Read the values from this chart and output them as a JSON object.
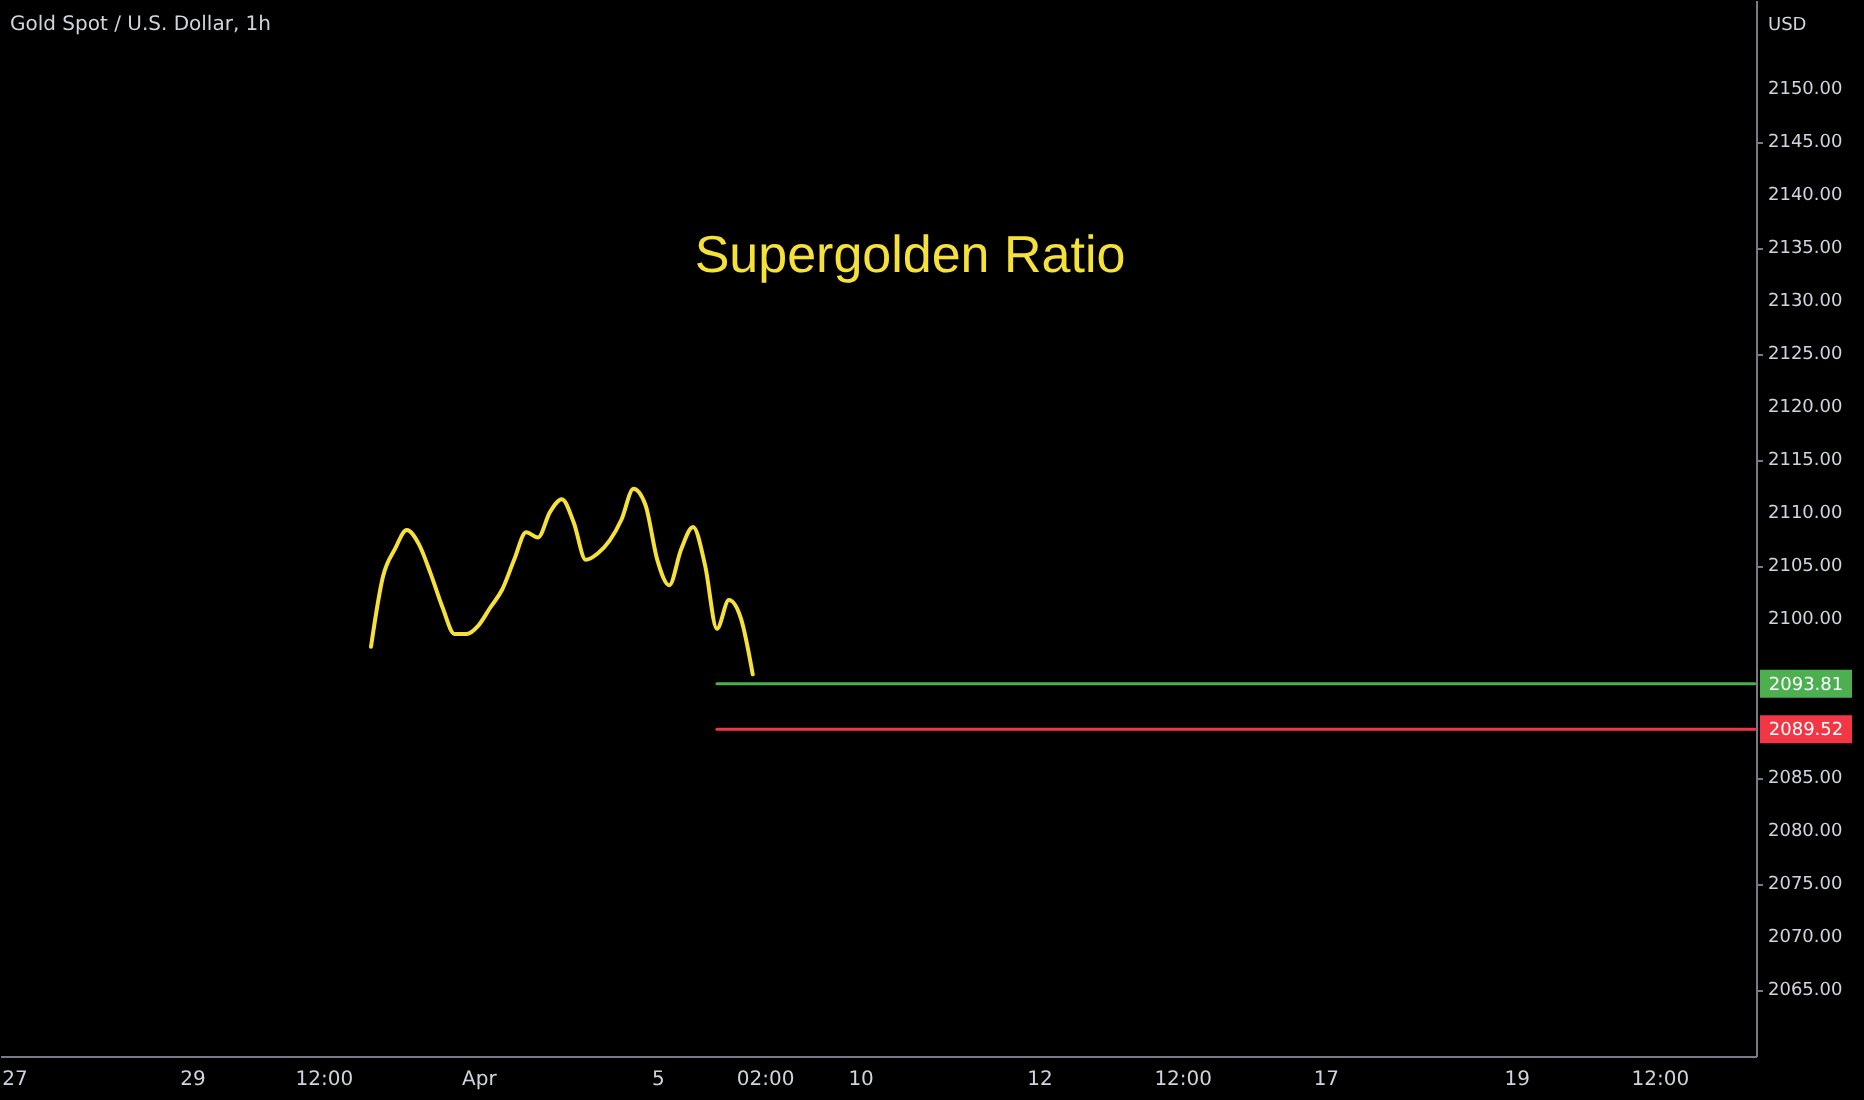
{
  "chart_data": {
    "type": "line",
    "title": "Gold Spot / U.S. Dollar, 1h",
    "ylabel": "USD",
    "annotations": [
      "Supergolden Ratio",
      "2093.81",
      "2089.52"
    ],
    "categories": [
      "27",
      null,
      null,
      null,
      null,
      null,
      null,
      null,
      null,
      null,
      null,
      null,
      null,
      null,
      null,
      null,
      "29",
      null,
      null,
      null,
      null,
      null,
      null,
      null,
      null,
      null,
      null,
      "12:00",
      null,
      null,
      null,
      null,
      null,
      null,
      null,
      null,
      null,
      null,
      null,
      null,
      "Apr",
      null,
      null,
      null,
      null,
      null,
      null,
      null,
      null,
      null,
      null,
      null,
      null,
      null,
      null,
      "5",
      null,
      null,
      null,
      null,
      null,
      null,
      null,
      null,
      "02:00",
      null,
      null,
      null,
      null,
      null,
      null,
      null,
      "10",
      null,
      null,
      null,
      null,
      null,
      null,
      null,
      null,
      null,
      null,
      null,
      null,
      null,
      null,
      "12",
      null,
      null,
      null,
      null,
      null,
      null,
      null,
      null,
      null,
      null,
      null,
      "12:00",
      null,
      null,
      null,
      null,
      null,
      null,
      null,
      null,
      null,
      null,
      null,
      "17",
      null,
      null,
      null,
      null,
      null,
      null,
      null,
      null,
      null,
      null,
      null,
      null,
      null,
      null,
      null,
      "19",
      null,
      null,
      null,
      null,
      null,
      null,
      null,
      null,
      null,
      null,
      null,
      "12:00",
      null,
      null,
      null,
      null,
      null,
      null,
      null,
      null
    ],
    "ylim": [
      2058.7,
      2158.3
    ],
    "yticks": [
      {
        "value": 2065,
        "label": "2065.00"
      },
      {
        "value": 2070,
        "label": "2070.00"
      },
      {
        "value": 2075,
        "label": "2075.00"
      },
      {
        "value": 2080,
        "label": "2080.00"
      },
      {
        "value": 2085,
        "label": "2085.00"
      },
      {
        "value": 2100,
        "label": "2100.00"
      },
      {
        "value": 2105,
        "label": "2105.00"
      },
      {
        "value": 2110,
        "label": "2110.00"
      },
      {
        "value": 2115,
        "label": "2115.00"
      },
      {
        "value": 2120,
        "label": "2120.00"
      },
      {
        "value": 2125,
        "label": "2125.00"
      },
      {
        "value": 2130,
        "label": "2130.00"
      },
      {
        "value": 2135,
        "label": "2135.00"
      },
      {
        "value": 2140,
        "label": "2140.00"
      },
      {
        "value": 2145,
        "label": "2145.00"
      },
      {
        "value": 2150,
        "label": "2150.00"
      }
    ],
    "grid": false,
    "marker": "none",
    "line_style": "solid",
    "series": [
      {
        "color": "#f5e13a",
        "values": [
          null,
          null,
          null,
          null,
          null,
          null,
          null,
          null,
          null,
          null,
          null,
          null,
          null,
          null,
          null,
          null,
          null,
          null,
          null,
          null,
          null,
          null,
          null,
          null,
          null,
          null,
          null,
          null,
          null,
          null,
          null,
          2097.3,
          2103.9,
          2106.5,
          2108.3,
          2107.0,
          2104.2,
          2101.0,
          2098.5,
          2098.5,
          2099.3,
          2101.0,
          2102.7,
          2105.5,
          2108.1,
          2107.6,
          2110.0,
          2111.2,
          2109.0,
          2105.5,
          2106.1,
          2107.3,
          2109.3,
          2112.2,
          2110.7,
          2105.5,
          2103.1,
          2106.5,
          2108.6,
          2105.0,
          2099.0,
          2101.7,
          2100.0,
          2094.7,
          null,
          null,
          null,
          null,
          null,
          null,
          null,
          null,
          null,
          null,
          null,
          null,
          null,
          null,
          null,
          null,
          null,
          null,
          null,
          null,
          null,
          null,
          null,
          null,
          null,
          null,
          null,
          null,
          null,
          null,
          null,
          null,
          null,
          null,
          null,
          null,
          null,
          null,
          null,
          null,
          null,
          null,
          null,
          null,
          null,
          null,
          null,
          null,
          null,
          null,
          null,
          null,
          null,
          null,
          null,
          null,
          null,
          null,
          null,
          null,
          null,
          null,
          null,
          null,
          null,
          null,
          null,
          null,
          null,
          null,
          null,
          null,
          null,
          null,
          null,
          null,
          null,
          null,
          null,
          null,
          null,
          null,
          null,
          null
        ]
      },
      {
        "color": "#4caf50",
        "values": [
          null,
          null,
          null,
          null,
          null,
          null,
          null,
          null,
          null,
          null,
          null,
          null,
          null,
          null,
          null,
          null,
          null,
          null,
          null,
          null,
          null,
          null,
          null,
          null,
          null,
          null,
          null,
          null,
          null,
          null,
          null,
          null,
          null,
          null,
          null,
          null,
          null,
          null,
          null,
          null,
          null,
          null,
          null,
          null,
          null,
          null,
          null,
          null,
          null,
          null,
          null,
          null,
          null,
          null,
          null,
          null,
          null,
          null,
          null,
          null,
          2093.81,
          2093.81,
          2093.81,
          2093.81,
          2093.81,
          2093.81,
          2093.81,
          2093.81,
          2093.81,
          2093.81,
          2093.81,
          2093.81,
          2093.81,
          2093.81,
          2093.81,
          2093.81,
          2093.81,
          2093.81,
          2093.81,
          2093.81,
          2093.81,
          2093.81,
          2093.81,
          2093.81,
          2093.81,
          2093.81,
          2093.81,
          2093.81,
          2093.81,
          2093.81,
          2093.81,
          2093.81,
          2093.81,
          2093.81,
          2093.81,
          2093.81,
          2093.81,
          2093.81,
          2093.81,
          2093.81,
          2093.81,
          2093.81,
          2093.81,
          2093.81,
          2093.81,
          2093.81,
          2093.81,
          2093.81,
          2093.81,
          2093.81,
          2093.81,
          2093.81,
          2093.81,
          2093.81,
          2093.81,
          2093.81,
          2093.81,
          2093.81,
          2093.81,
          2093.81,
          2093.81,
          2093.81,
          2093.81,
          2093.81,
          2093.81,
          2093.81,
          2093.81,
          2093.81,
          2093.81,
          2093.81,
          2093.81,
          2093.81,
          2093.81,
          2093.81,
          2093.81,
          2093.81,
          2093.81,
          2093.81,
          2093.81,
          2093.81,
          2093.81,
          2093.81,
          2093.81,
          2093.81,
          2093.81,
          2093.81,
          2093.81,
          2093.81
        ]
      },
      {
        "color": "#f23645",
        "values": [
          null,
          null,
          null,
          null,
          null,
          null,
          null,
          null,
          null,
          null,
          null,
          null,
          null,
          null,
          null,
          null,
          null,
          null,
          null,
          null,
          null,
          null,
          null,
          null,
          null,
          null,
          null,
          null,
          null,
          null,
          null,
          null,
          null,
          null,
          null,
          null,
          null,
          null,
          null,
          null,
          null,
          null,
          null,
          null,
          null,
          null,
          null,
          null,
          null,
          null,
          null,
          null,
          null,
          null,
          null,
          null,
          null,
          null,
          null,
          null,
          2089.52,
          2089.52,
          2089.52,
          2089.52,
          2089.52,
          2089.52,
          2089.52,
          2089.52,
          2089.52,
          2089.52,
          2089.52,
          2089.52,
          2089.52,
          2089.52,
          2089.52,
          2089.52,
          2089.52,
          2089.52,
          2089.52,
          2089.52,
          2089.52,
          2089.52,
          2089.52,
          2089.52,
          2089.52,
          2089.52,
          2089.52,
          2089.52,
          2089.52,
          2089.52,
          2089.52,
          2089.52,
          2089.52,
          2089.52,
          2089.52,
          2089.52,
          2089.52,
          2089.52,
          2089.52,
          2089.52,
          2089.52,
          2089.52,
          2089.52,
          2089.52,
          2089.52,
          2089.52,
          2089.52,
          2089.52,
          2089.52,
          2089.52,
          2089.52,
          2089.52,
          2089.52,
          2089.52,
          2089.52,
          2089.52,
          2089.52,
          2089.52,
          2089.52,
          2089.52,
          2089.52,
          2089.52,
          2089.52,
          2089.52,
          2089.52,
          2089.52,
          2089.52,
          2089.52,
          2089.52,
          2089.52,
          2089.52,
          2089.52,
          2089.52,
          2089.52,
          2089.52,
          2089.52,
          2089.52,
          2089.52,
          2089.52,
          2089.52,
          2089.52,
          2089.52,
          2089.52,
          2089.52,
          2089.52,
          2089.52,
          2089.52,
          2089.52
        ]
      }
    ]
  }
}
